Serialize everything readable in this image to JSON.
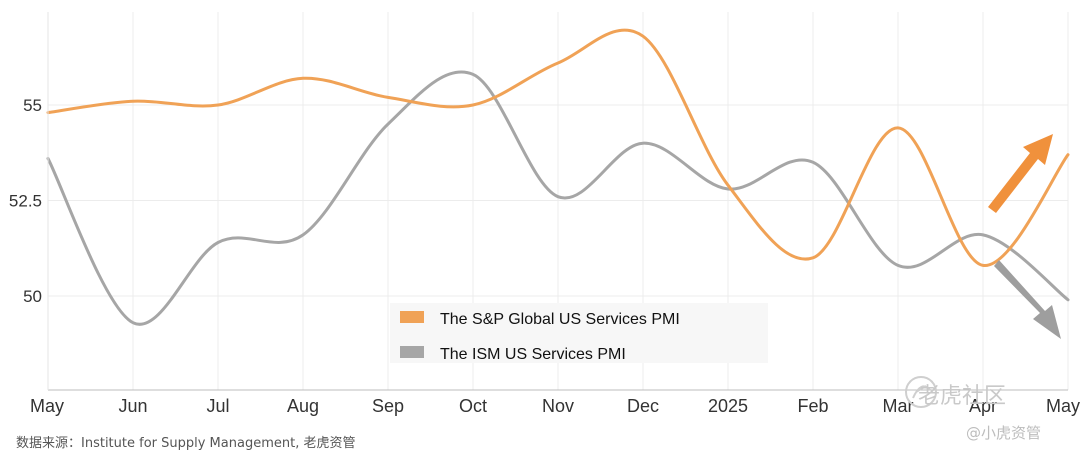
{
  "chart_data": {
    "type": "line",
    "categories": [
      "May",
      "Jun",
      "Jul",
      "Aug",
      "Sep",
      "Oct",
      "Nov",
      "Dec",
      "2025",
      "Feb",
      "Mar",
      "Apr",
      "May"
    ],
    "y_ticks": [
      "55",
      "52.5",
      "50"
    ],
    "ylim": [
      47.5,
      57.5
    ],
    "grid": true,
    "legend_placement": "bottom-center",
    "series": [
      {
        "name": "The S&P Global US Services PMI",
        "color": "#f0a256",
        "values": [
          54.8,
          55.1,
          55.0,
          55.7,
          55.2,
          55.0,
          56.1,
          56.8,
          52.9,
          51.0,
          54.4,
          50.8,
          53.7
        ]
      },
      {
        "name": "The ISM US Services PMI",
        "color": "#a6a6a6",
        "values": [
          53.6,
          49.3,
          51.4,
          51.6,
          54.5,
          55.8,
          52.6,
          54.0,
          52.8,
          53.5,
          50.8,
          51.6,
          49.9
        ]
      }
    ],
    "annotations": {
      "up_arrow_color": "#f0913c",
      "down_arrow_color": "#9e9e9e"
    }
  },
  "source_text": "数据来源：Institute for Supply Management, 老虎资管",
  "watermark": {
    "main": "老虎社区",
    "sub": "@小虎资管",
    "icon": "tiger-community-logo-icon"
  }
}
